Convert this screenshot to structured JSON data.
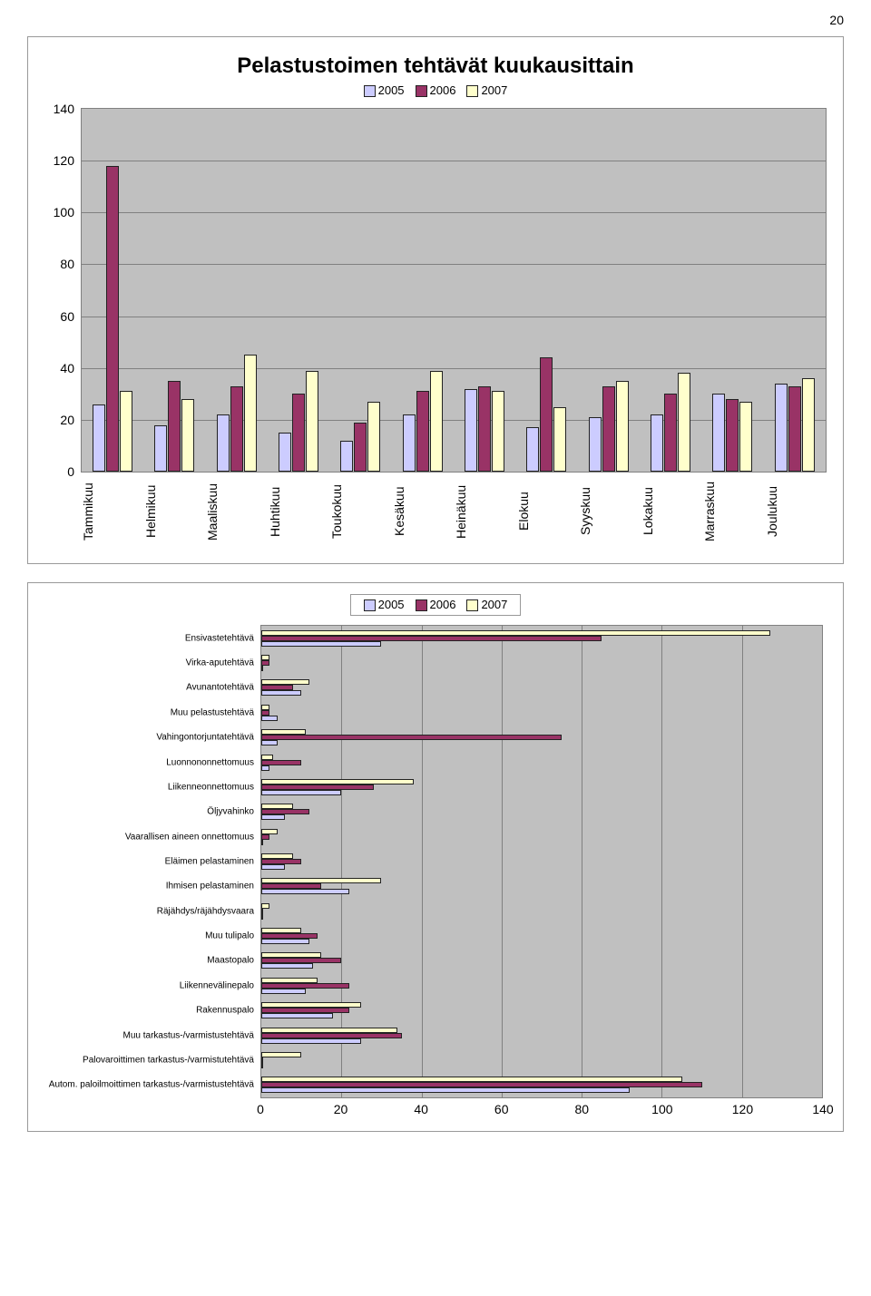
{
  "page_number": "20",
  "colors": {
    "series_2005": "#ccccff",
    "series_2006": "#993366",
    "series_2007": "#ffffcc",
    "plot_bg": "#c0c0c0",
    "grid": "#808080",
    "border": "#222222"
  },
  "chart1": {
    "title": "Pelastustoimen tehtävät kuukausittain",
    "legend": [
      "2005",
      "2006",
      "2007"
    ],
    "ylim": [
      0,
      140
    ],
    "ytick_step": 20,
    "categories": [
      "Tammikuu",
      "Helmikuu",
      "Maaliskuu",
      "Huhtikuu",
      "Toukokuu",
      "Kesäkuu",
      "Heinäkuu",
      "Elokuu",
      "Syyskuu",
      "Lokakuu",
      "Marraskuu",
      "Joulukuu"
    ],
    "series": {
      "2005": [
        26,
        18,
        22,
        15,
        12,
        22,
        32,
        17,
        21,
        22,
        30,
        34
      ],
      "2006": [
        118,
        35,
        33,
        30,
        19,
        31,
        33,
        44,
        33,
        30,
        28,
        33
      ],
      "2007": [
        31,
        28,
        45,
        39,
        27,
        39,
        31,
        25,
        35,
        38,
        27,
        36
      ]
    }
  },
  "chart2": {
    "legend": [
      "2005",
      "2006",
      "2007"
    ],
    "xlim": [
      0,
      140
    ],
    "xtick_step": 20,
    "categories": [
      "Ensivastetehtävä",
      "Virka-aputehtävä",
      "Avunantotehtävä",
      "Muu pelastustehtävä",
      "Vahingontorjuntatehtävä",
      "Luonnononnettomuus",
      "Liikenneonnettomuus",
      "Öljyvahinko",
      "Vaarallisen aineen onnettomuus",
      "Eläimen pelastaminen",
      "Ihmisen pelastaminen",
      "Räjähdys/räjähdysvaara",
      "Muu tulipalo",
      "Maastopalo",
      "Liikennevälinepalo",
      "Rakennuspalo",
      "Muu tarkastus-/varmistustehtävä",
      "Palovaroittimen tarkastus-/varmistutehtävä",
      "Autom. paloilmoittimen tarkastus-/varmistustehtävä"
    ],
    "series": {
      "2005": [
        30,
        0,
        10,
        4,
        4,
        2,
        20,
        6,
        0,
        6,
        22,
        0,
        12,
        13,
        11,
        18,
        25,
        0,
        92
      ],
      "2006": [
        85,
        2,
        8,
        2,
        75,
        10,
        28,
        12,
        2,
        10,
        15,
        0,
        14,
        20,
        22,
        22,
        35,
        0,
        110
      ],
      "2007": [
        127,
        2,
        12,
        2,
        11,
        3,
        38,
        8,
        4,
        8,
        30,
        2,
        10,
        15,
        14,
        25,
        34,
        10,
        105
      ]
    }
  }
}
